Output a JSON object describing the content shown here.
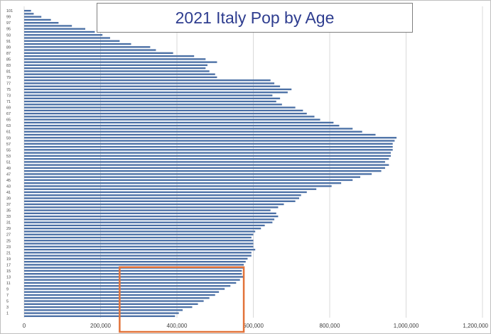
{
  "chart_data": {
    "type": "bar",
    "orientation": "horizontal",
    "title": "2021 Italy Pop by Age",
    "xlabel": "",
    "ylabel": "",
    "xlim": [
      0,
      1200000
    ],
    "x_ticks": [
      0,
      200000,
      400000,
      600000,
      800000,
      1000000,
      1200000
    ],
    "x_tick_labels": [
      "0",
      "200,000",
      "400,000",
      "600,000",
      "800,000",
      "1,000,000",
      "1,200,000"
    ],
    "grid": "vertical",
    "bar_color": "#4a6fa5",
    "highlight_color": "#e2733a",
    "highlight": {
      "xmin": 250000,
      "xmax": 575000,
      "age_min": 0,
      "age_max": 15
    },
    "y_tick_labels": [
      "1",
      "3",
      "5",
      "7",
      "9",
      "11",
      "13",
      "15",
      "17",
      "19",
      "21",
      "23",
      "25",
      "27",
      "29",
      "31",
      "33",
      "35",
      "37",
      "39",
      "41",
      "43",
      "45",
      "47",
      "49",
      "51",
      "53",
      "55",
      "57",
      "59",
      "61",
      "63",
      "65",
      "67",
      "69",
      "71",
      "73",
      "75",
      "77",
      "79",
      "81",
      "83",
      "85",
      "87",
      "89",
      "91",
      "93",
      "95",
      "97",
      "99",
      "101"
    ],
    "ages": [
      0,
      1,
      2,
      3,
      4,
      5,
      6,
      7,
      8,
      9,
      10,
      11,
      12,
      13,
      14,
      15,
      16,
      17,
      18,
      19,
      20,
      21,
      22,
      23,
      24,
      25,
      26,
      27,
      28,
      29,
      30,
      31,
      32,
      33,
      34,
      35,
      36,
      37,
      38,
      39,
      40,
      41,
      42,
      43,
      44,
      45,
      46,
      47,
      48,
      49,
      50,
      51,
      52,
      53,
      54,
      55,
      56,
      57,
      58,
      59,
      60,
      61,
      62,
      63,
      64,
      65,
      66,
      67,
      68,
      69,
      70,
      71,
      72,
      73,
      74,
      75,
      76,
      77,
      78,
      79,
      80,
      81,
      82,
      83,
      84,
      85,
      86,
      87,
      88,
      89,
      90,
      91,
      92,
      93,
      94,
      95,
      96,
      97,
      98,
      99,
      100,
      101
    ],
    "values": [
      395000,
      405000,
      415000,
      440000,
      455000,
      470000,
      485000,
      500000,
      510000,
      525000,
      540000,
      555000,
      565000,
      575000,
      570000,
      570000,
      575000,
      575000,
      580000,
      585000,
      595000,
      595000,
      605000,
      600000,
      600000,
      600000,
      595000,
      600000,
      605000,
      620000,
      630000,
      650000,
      655000,
      665000,
      660000,
      645000,
      665000,
      680000,
      710000,
      720000,
      725000,
      740000,
      765000,
      805000,
      830000,
      860000,
      880000,
      910000,
      935000,
      945000,
      955000,
      945000,
      955000,
      960000,
      960000,
      965000,
      965000,
      965000,
      970000,
      975000,
      920000,
      885000,
      860000,
      825000,
      810000,
      775000,
      760000,
      740000,
      730000,
      710000,
      675000,
      660000,
      670000,
      650000,
      690000,
      700000,
      670000,
      655000,
      645000,
      505000,
      500000,
      485000,
      475000,
      480000,
      505000,
      475000,
      445000,
      390000,
      345000,
      330000,
      280000,
      250000,
      225000,
      205000,
      185000,
      160000,
      125000,
      90000,
      70000,
      45000,
      25000,
      18000
    ]
  }
}
